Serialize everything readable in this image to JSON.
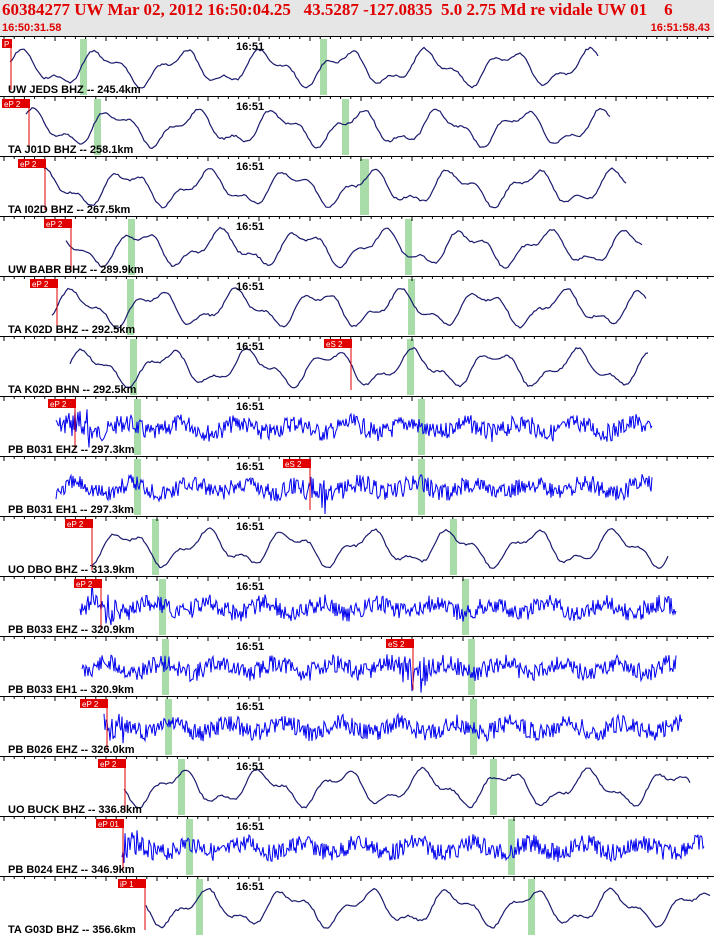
{
  "header": {
    "title": "60384277 UW Mar 02, 2012 16:50:04.25   43.5287 -127.0835  5.0 2.75 Md re vidale UW 01    6",
    "start_time": "16:50:31.58",
    "end_time": "16:51:58.43"
  },
  "minute_label": "16:51",
  "colors": {
    "short_period_trace": "#1a1a6e",
    "broadband_trace": "#0000ee",
    "pick": "#e00000",
    "marker": "#a8dca8",
    "axis": "#000000",
    "header_bg": "#e6e6e6"
  },
  "channels": [
    {
      "label": "UW JEDS BHZ -- 245.4km",
      "pick": "P",
      "type": "long",
      "seed": 1
    },
    {
      "label": "TA J01D BHZ -- 258.1km",
      "pick": "eP 2",
      "type": "long",
      "seed": 2
    },
    {
      "label": "TA I02D BHZ -- 267.5km",
      "pick": "eP 2",
      "type": "long",
      "seed": 3
    },
    {
      "label": "UW BABR BHZ -- 289.9km",
      "pick": "eP 2",
      "type": "long",
      "seed": 4
    },
    {
      "label": "TA K02D BHZ -- 292.5km",
      "pick": "eP 2",
      "type": "long",
      "seed": 5
    },
    {
      "label": "TA K02D BHN -- 292.5km",
      "pick": "eS 2",
      "type": "long",
      "seed": 6
    },
    {
      "label": "PB B031 EHZ -- 297.3km",
      "pick": "eP 2",
      "type": "noise",
      "seed": 7
    },
    {
      "label": "PB B031 EH1 -- 297.3km",
      "pick": "eS 2",
      "type": "noise",
      "seed": 8
    },
    {
      "label": "UO DBO BHZ -- 313.9km",
      "pick": "eP 2",
      "type": "long",
      "seed": 9
    },
    {
      "label": "PB B033 EHZ -- 320.9km",
      "pick": "eP 2",
      "type": "noise",
      "seed": 10
    },
    {
      "label": "PB B033 EH1 -- 320.9km",
      "pick": "eS 2",
      "type": "noise",
      "seed": 11
    },
    {
      "label": "PB B026 EHZ -- 326.0km",
      "pick": "eP 2",
      "type": "noise",
      "seed": 12
    },
    {
      "label": "UO BUCK BHZ -- 336.8km",
      "pick": "eP 2",
      "type": "long",
      "seed": 13
    },
    {
      "label": "PB B024 EHZ -- 346.9km",
      "pick": "eP 01",
      "type": "noise",
      "seed": 14
    },
    {
      "label": "TA G03D BHZ -- 356.6km",
      "pick": "iP 1",
      "type": "long",
      "seed": 15
    }
  ]
}
